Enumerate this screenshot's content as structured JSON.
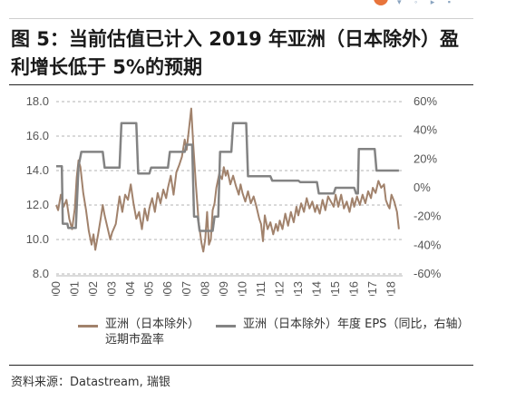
{
  "title": "图 5：当前估值已计入 2019 年亚洲（日本除外）盈利增长低于 5%的预期",
  "source": "资料来源：Datastream, 瑞银",
  "chart_data": {
    "type": "line",
    "title": "图 5：当前估值已计入 2019 年亚洲（日本除外）盈利增长低于 5%的预期",
    "xlabel": "",
    "ylabel": "",
    "x_ticks": [
      "2000",
      "2001",
      "2002",
      "2003",
      "2004",
      "2005",
      "2006",
      "2007",
      "2008",
      "2009",
      "2010",
      "2011",
      "2012",
      "2013",
      "2014",
      "2015",
      "2016",
      "2017",
      "2018"
    ],
    "xlim": [
      2000,
      2018.6
    ],
    "left_axis": {
      "ylim": [
        8.0,
        18.0
      ],
      "ticks": [
        "8.0",
        "10.0",
        "12.0",
        "14.0",
        "16.0",
        "18.0"
      ]
    },
    "right_axis": {
      "ylim": [
        -60,
        60
      ],
      "ticks": [
        "-60%",
        "-40%",
        "-20%",
        "0%",
        "20%",
        "40%",
        "60%"
      ]
    },
    "grid": "horizontal dashed",
    "legend_position": "bottom",
    "colors": {
      "pe": "#a1826c",
      "eps": "#838383"
    },
    "series": [
      {
        "name": "亚洲（日本除外）远期市盈率",
        "legend_line1": "亚洲（日本除外）",
        "legend_line2": "远期市盈率",
        "axis": "left",
        "points": [
          [
            2000.0,
            12.0
          ],
          [
            2000.1,
            11.7
          ],
          [
            2000.25,
            12.6
          ],
          [
            2000.4,
            11.9
          ],
          [
            2000.55,
            12.3
          ],
          [
            2000.7,
            11.2
          ],
          [
            2000.85,
            10.6
          ],
          [
            2001.0,
            11.8
          ],
          [
            2001.1,
            13.6
          ],
          [
            2001.2,
            14.6
          ],
          [
            2001.3,
            14.2
          ],
          [
            2001.45,
            12.7
          ],
          [
            2001.6,
            11.7
          ],
          [
            2001.75,
            10.5
          ],
          [
            2001.9,
            9.7
          ],
          [
            2002.0,
            10.3
          ],
          [
            2002.1,
            9.4
          ],
          [
            2002.25,
            10.3
          ],
          [
            2002.4,
            11.3
          ],
          [
            2002.5,
            12.0
          ],
          [
            2002.6,
            11.4
          ],
          [
            2002.75,
            10.7
          ],
          [
            2002.9,
            10.0
          ],
          [
            2003.0,
            10.4
          ],
          [
            2003.2,
            10.9
          ],
          [
            2003.4,
            12.5
          ],
          [
            2003.55,
            11.6
          ],
          [
            2003.7,
            12.6
          ],
          [
            2003.85,
            12.3
          ],
          [
            2004.0,
            13.2
          ],
          [
            2004.15,
            12.1
          ],
          [
            2004.3,
            11.2
          ],
          [
            2004.45,
            11.6
          ],
          [
            2004.6,
            10.6
          ],
          [
            2004.75,
            11.8
          ],
          [
            2004.9,
            11.1
          ],
          [
            2005.0,
            11.8
          ],
          [
            2005.15,
            12.4
          ],
          [
            2005.3,
            11.6
          ],
          [
            2005.45,
            12.7
          ],
          [
            2005.6,
            12.1
          ],
          [
            2005.75,
            12.9
          ],
          [
            2005.9,
            12.4
          ],
          [
            2006.0,
            13.0
          ],
          [
            2006.15,
            13.7
          ],
          [
            2006.3,
            12.6
          ],
          [
            2006.45,
            13.9
          ],
          [
            2006.6,
            14.3
          ],
          [
            2006.75,
            14.8
          ],
          [
            2006.9,
            15.8
          ],
          [
            2007.0,
            15.2
          ],
          [
            2007.15,
            16.6
          ],
          [
            2007.25,
            17.6
          ],
          [
            2007.35,
            15.6
          ],
          [
            2007.5,
            13.2
          ],
          [
            2007.65,
            11.0
          ],
          [
            2007.8,
            9.8
          ],
          [
            2007.9,
            9.3
          ],
          [
            2008.0,
            10.0
          ],
          [
            2008.1,
            11.6
          ],
          [
            2008.2,
            9.7
          ],
          [
            2008.3,
            10.0
          ],
          [
            2008.4,
            11.7
          ],
          [
            2008.5,
            12.1
          ],
          [
            2008.6,
            13.0
          ],
          [
            2008.75,
            13.8
          ],
          [
            2008.9,
            13.5
          ],
          [
            2009.0,
            14.2
          ],
          [
            2009.1,
            13.7
          ],
          [
            2009.2,
            14.0
          ],
          [
            2009.35,
            13.2
          ],
          [
            2009.5,
            13.7
          ],
          [
            2009.65,
            13.1
          ],
          [
            2009.8,
            12.6
          ],
          [
            2009.9,
            13.2
          ],
          [
            2010.0,
            12.7
          ],
          [
            2010.15,
            12.2
          ],
          [
            2010.3,
            12.8
          ],
          [
            2010.45,
            12.1
          ],
          [
            2010.6,
            12.5
          ],
          [
            2010.75,
            11.9
          ],
          [
            2010.9,
            11.2
          ],
          [
            2011.0,
            10.9
          ],
          [
            2011.1,
            9.9
          ],
          [
            2011.2,
            11.4
          ],
          [
            2011.35,
            10.6
          ],
          [
            2011.5,
            11.0
          ],
          [
            2011.65,
            10.3
          ],
          [
            2011.8,
            10.9
          ],
          [
            2011.9,
            10.5
          ],
          [
            2012.0,
            11.1
          ],
          [
            2012.15,
            10.6
          ],
          [
            2012.3,
            11.5
          ],
          [
            2012.45,
            10.8
          ],
          [
            2012.6,
            11.6
          ],
          [
            2012.75,
            11.0
          ],
          [
            2012.9,
            11.9
          ],
          [
            2013.0,
            11.4
          ],
          [
            2013.15,
            12.1
          ],
          [
            2013.3,
            11.6
          ],
          [
            2013.45,
            12.4
          ],
          [
            2013.6,
            11.8
          ],
          [
            2013.75,
            12.2
          ],
          [
            2013.9,
            11.6
          ],
          [
            2014.0,
            12.0
          ],
          [
            2014.15,
            11.5
          ],
          [
            2014.3,
            12.3
          ],
          [
            2014.45,
            11.7
          ],
          [
            2014.6,
            12.5
          ],
          [
            2014.75,
            12.2
          ],
          [
            2014.9,
            11.9
          ],
          [
            2015.0,
            12.6
          ],
          [
            2015.15,
            11.9
          ],
          [
            2015.3,
            12.6
          ],
          [
            2015.45,
            11.8
          ],
          [
            2015.6,
            12.2
          ],
          [
            2015.75,
            11.6
          ],
          [
            2015.9,
            12.4
          ],
          [
            2016.0,
            11.9
          ],
          [
            2016.15,
            12.5
          ],
          [
            2016.3,
            12.0
          ],
          [
            2016.45,
            12.6
          ],
          [
            2016.6,
            12.1
          ],
          [
            2016.75,
            12.8
          ],
          [
            2016.9,
            12.4
          ],
          [
            2017.0,
            13.0
          ],
          [
            2017.15,
            12.7
          ],
          [
            2017.3,
            13.4
          ],
          [
            2017.45,
            13.0
          ],
          [
            2017.6,
            13.2
          ],
          [
            2017.7,
            12.3
          ],
          [
            2017.8,
            12.0
          ],
          [
            2017.9,
            11.8
          ],
          [
            2018.0,
            12.6
          ],
          [
            2018.15,
            12.2
          ],
          [
            2018.3,
            11.6
          ],
          [
            2018.4,
            10.6
          ]
        ]
      },
      {
        "name": "亚洲（日本除外）年度 EPS（同比，右轴）",
        "legend_line1": "亚洲（日本除外）年度 EPS（同比，右轴）",
        "axis": "right",
        "points": [
          [
            2000.0,
            15
          ],
          [
            2000.3,
            15
          ],
          [
            2000.35,
            -25
          ],
          [
            2000.6,
            -25
          ],
          [
            2000.65,
            -28
          ],
          [
            2000.95,
            -28
          ],
          [
            2001.05,
            -28
          ],
          [
            2001.2,
            15
          ],
          [
            2001.35,
            25
          ],
          [
            2002.5,
            25
          ],
          [
            2002.6,
            14
          ],
          [
            2003.4,
            14
          ],
          [
            2003.5,
            45
          ],
          [
            2004.3,
            45
          ],
          [
            2004.4,
            10
          ],
          [
            2005.0,
            10
          ],
          [
            2005.1,
            14
          ],
          [
            2006.0,
            14
          ],
          [
            2006.1,
            25
          ],
          [
            2006.9,
            25
          ],
          [
            2007.0,
            30
          ],
          [
            2007.3,
            30
          ],
          [
            2007.4,
            -20
          ],
          [
            2007.6,
            -20
          ],
          [
            2007.7,
            -30
          ],
          [
            2008.4,
            -30
          ],
          [
            2008.5,
            -20
          ],
          [
            2008.7,
            -20
          ],
          [
            2008.8,
            25
          ],
          [
            2009.4,
            25
          ],
          [
            2009.5,
            45
          ],
          [
            2010.2,
            45
          ],
          [
            2010.3,
            8
          ],
          [
            2011.5,
            8
          ],
          [
            2011.6,
            5
          ],
          [
            2012.0,
            5
          ],
          [
            2012.1,
            5
          ],
          [
            2013.0,
            5
          ],
          [
            2013.1,
            4
          ],
          [
            2014.0,
            4
          ],
          [
            2014.1,
            -4
          ],
          [
            2014.9,
            -4
          ],
          [
            2015.0,
            0
          ],
          [
            2016.0,
            0
          ],
          [
            2016.1,
            -4
          ],
          [
            2016.2,
            -4
          ],
          [
            2016.25,
            27
          ],
          [
            2017.1,
            27
          ],
          [
            2017.2,
            12
          ],
          [
            2018.4,
            12
          ]
        ]
      }
    ]
  }
}
